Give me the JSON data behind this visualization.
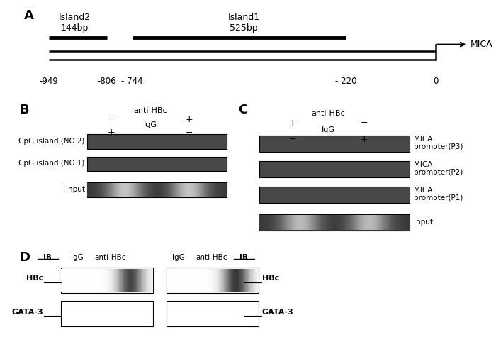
{
  "panel_A": {
    "label": "A",
    "island2_label": "Island2\n144bp",
    "island1_label": "Island1\n525bp",
    "mica_label": "MICA",
    "pos_labels": [
      "-949",
      "-806",
      "- 744",
      "- 220",
      "0"
    ],
    "pos_vals": [
      -949,
      -806,
      -744,
      -220,
      0
    ]
  },
  "panel_B": {
    "label": "B",
    "header1": "anti-HBc",
    "header2": "IgG",
    "col1_h1": "−",
    "col2_h1": "+",
    "col1_h2": "+",
    "col2_h2": "−",
    "row_labels": [
      "CpG island (NO.2)",
      "CpG island (NO.1)",
      "Input"
    ]
  },
  "panel_C": {
    "label": "C",
    "header1": "anti-HBc",
    "header2": "IgG",
    "col1_h1": "+",
    "col2_h1": "−",
    "col1_h2": "−",
    "col2_h2": "+",
    "row_labels": [
      "MICA\npromoter(P3)",
      "MICA\npromoter(P2)",
      "MICA\npromoter(P1)",
      "Input"
    ]
  },
  "panel_D": {
    "label": "D",
    "col_labels": [
      "IB",
      "IgG",
      "anti-HBc",
      "IgG",
      "anti-HBc",
      "IB"
    ],
    "left_row_labels": [
      "HBc",
      "GATA-3"
    ],
    "right_row_labels": [
      "HBc",
      "GATA-3"
    ]
  },
  "gel_dark": "#484848",
  "gel_darker": "#383838",
  "gel_white": "#ffffff"
}
